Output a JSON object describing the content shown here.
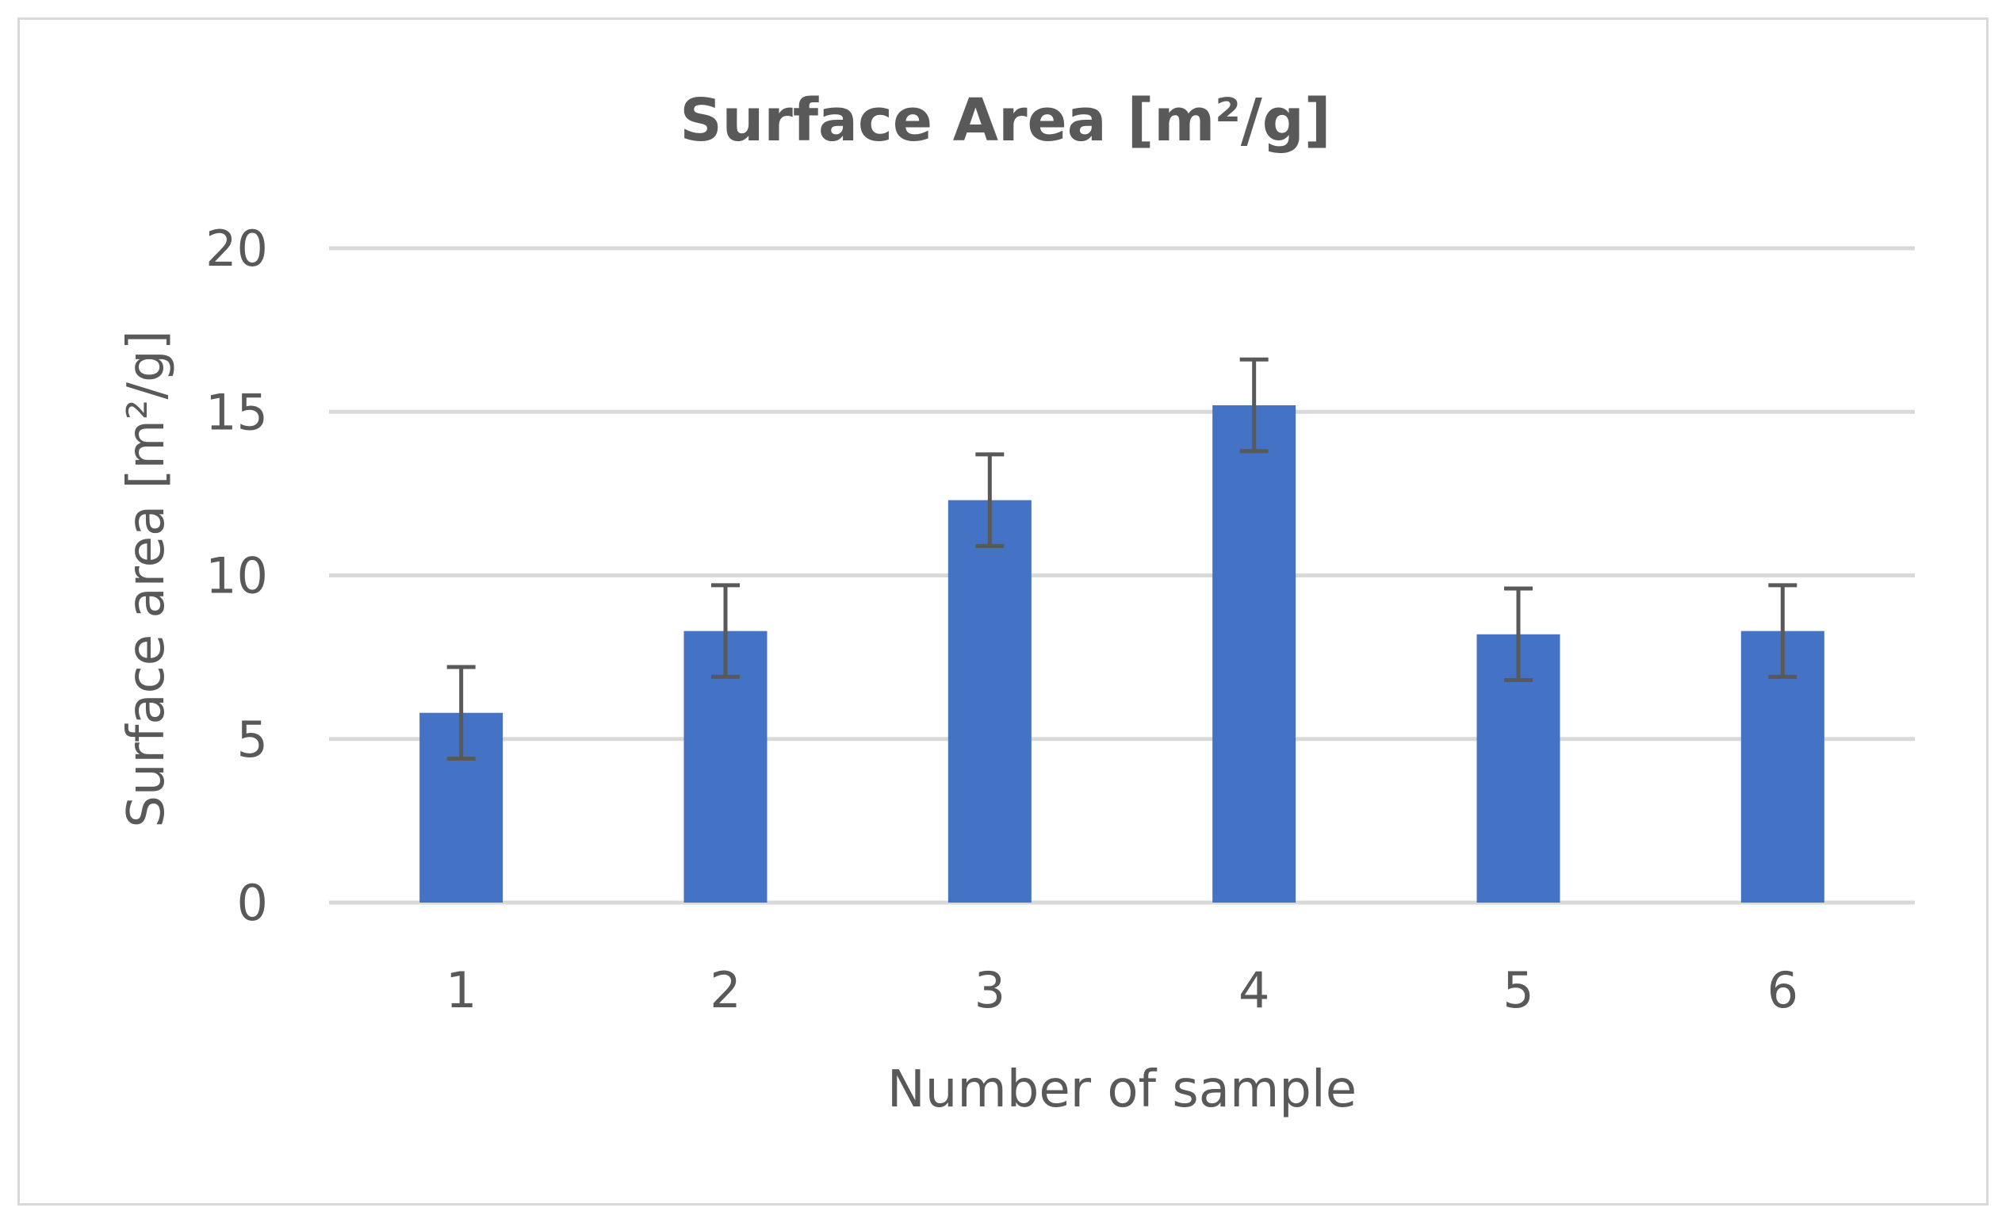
{
  "chart_data": {
    "type": "bar",
    "title": "Surface Area [m²/g]",
    "xlabel": "Number of sample",
    "ylabel": "Surface area [m²/g]",
    "categories": [
      "1",
      "2",
      "3",
      "4",
      "5",
      "6"
    ],
    "values": [
      5.8,
      8.3,
      12.3,
      15.2,
      8.2,
      8.3
    ],
    "error": [
      1.4,
      1.4,
      1.4,
      1.4,
      1.4,
      1.4
    ],
    "ylim": [
      0,
      20
    ],
    "yticks": [
      0,
      5,
      10,
      15,
      20
    ],
    "grid": true,
    "legend": "none",
    "colors": {
      "bar": "#4472c4",
      "error_bar": "#595959",
      "grid": "#d9d9d9",
      "text": "#595959",
      "border": "#d9d9d9"
    }
  }
}
